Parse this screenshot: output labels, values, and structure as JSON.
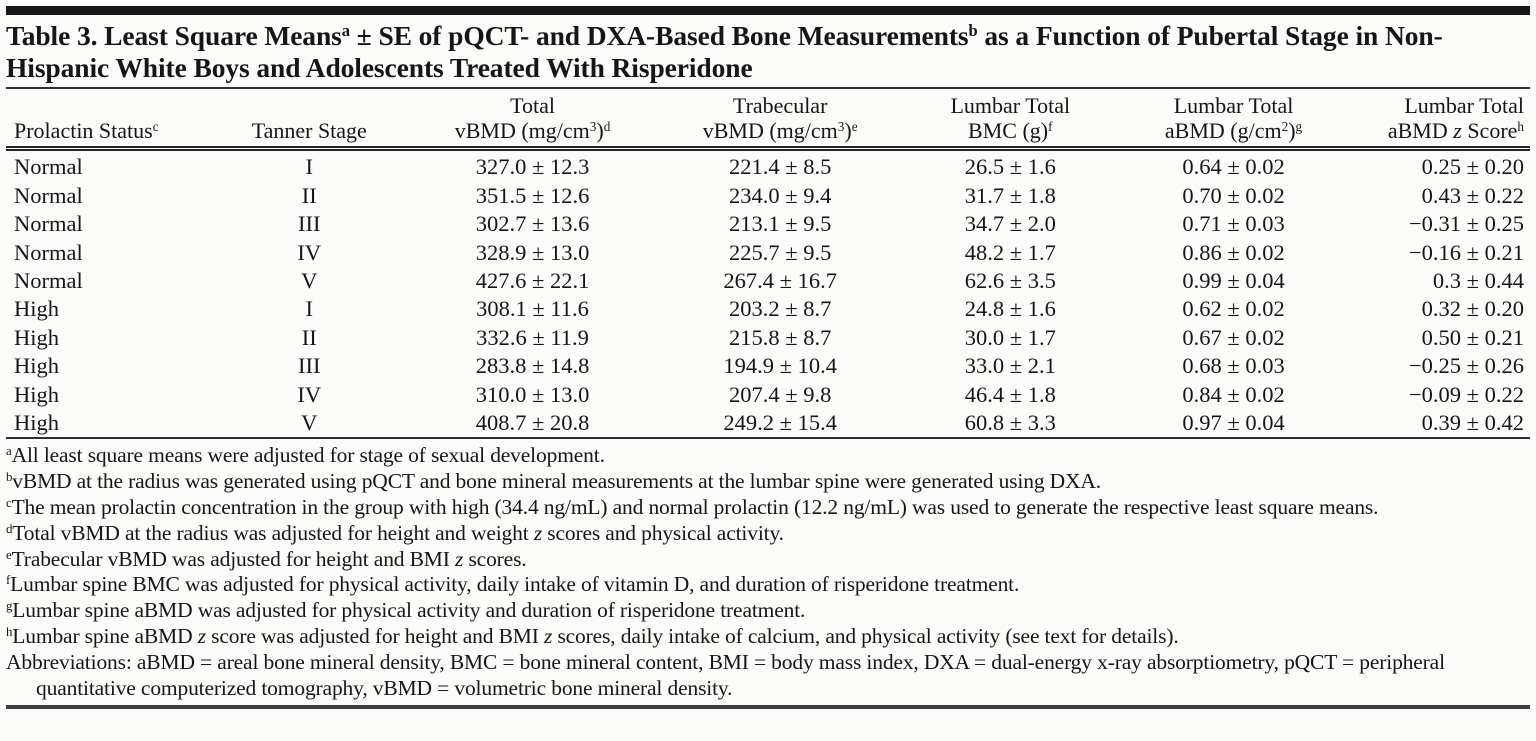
{
  "colors": {
    "text": "#161616",
    "rule": "#2e2e2e",
    "background": "#fbfbf9"
  },
  "title": {
    "parts": [
      [
        "t",
        "Table 3. Least Square Means"
      ],
      [
        "s",
        "a"
      ],
      [
        "t",
        " ± SE of pQCT- and DXA-Based Bone Measurements"
      ],
      [
        "s",
        "b"
      ],
      [
        "t",
        " as a Function of Pubertal Stage in Non-Hispanic White Boys and Adolescents Treated With Risperidone"
      ]
    ]
  },
  "table": {
    "columns": [
      {
        "id": "prolactin",
        "line2": [
          [
            "t",
            "Prolactin Status"
          ],
          [
            "s",
            "c"
          ]
        ]
      },
      {
        "id": "tanner",
        "line2": [
          [
            "t",
            "Tanner Stage"
          ]
        ]
      },
      {
        "id": "total_vbmd",
        "line1": [
          [
            "t",
            "Total"
          ]
        ],
        "line2": [
          [
            "t",
            "vBMD (mg/cm"
          ],
          [
            "s",
            "3"
          ],
          [
            "t",
            ")"
          ],
          [
            "s",
            "d"
          ]
        ]
      },
      {
        "id": "trab_vbmd",
        "line1": [
          [
            "t",
            "Trabecular"
          ]
        ],
        "line2": [
          [
            "t",
            "vBMD (mg/cm"
          ],
          [
            "s",
            "3"
          ],
          [
            "t",
            ")"
          ],
          [
            "s",
            "e"
          ]
        ]
      },
      {
        "id": "bmc",
        "line1": [
          [
            "t",
            "Lumbar Total"
          ]
        ],
        "line2": [
          [
            "t",
            "BMC (g)"
          ],
          [
            "s",
            "f"
          ]
        ]
      },
      {
        "id": "abmd",
        "line1": [
          [
            "t",
            "Lumbar Total"
          ]
        ],
        "line2": [
          [
            "t",
            "aBMD (g/cm"
          ],
          [
            "s",
            "2"
          ],
          [
            "t",
            ")"
          ],
          [
            "s",
            "g"
          ]
        ]
      },
      {
        "id": "abmd_z",
        "line1": [
          [
            "t",
            "Lumbar Total"
          ]
        ],
        "line2": [
          [
            "t",
            "aBMD "
          ],
          [
            "i",
            "z"
          ],
          [
            "t",
            " Score"
          ],
          [
            "s",
            "h"
          ]
        ]
      }
    ],
    "row_keys": [
      "prolactin",
      "tanner",
      "total_vbmd",
      "trab_vbmd",
      "bmc",
      "abmd",
      "abmd_z"
    ],
    "rows": [
      {
        "prolactin": "Normal",
        "tanner": "I",
        "total_vbmd": "327.0 ± 12.3",
        "trab_vbmd": "221.4 ± 8.5",
        "bmc": "26.5 ± 1.6",
        "abmd": "0.64 ± 0.02",
        "abmd_z": "0.25 ± 0.20"
      },
      {
        "prolactin": "Normal",
        "tanner": "II",
        "total_vbmd": "351.5 ± 12.6",
        "trab_vbmd": "234.0 ± 9.4",
        "bmc": "31.7 ± 1.8",
        "abmd": "0.70 ± 0.02",
        "abmd_z": "0.43 ± 0.22"
      },
      {
        "prolactin": "Normal",
        "tanner": "III",
        "total_vbmd": "302.7 ± 13.6",
        "trab_vbmd": "213.1 ± 9.5",
        "bmc": "34.7 ± 2.0",
        "abmd": "0.71 ± 0.03",
        "abmd_z": "−0.31 ± 0.25"
      },
      {
        "prolactin": "Normal",
        "tanner": "IV",
        "total_vbmd": "328.9 ± 13.0",
        "trab_vbmd": "225.7 ± 9.5",
        "bmc": "48.2 ± 1.7",
        "abmd": "0.86 ± 0.02",
        "abmd_z": "−0.16 ± 0.21"
      },
      {
        "prolactin": "Normal",
        "tanner": "V",
        "total_vbmd": "427.6 ± 22.1",
        "trab_vbmd": "267.4 ± 16.7",
        "bmc": "62.6 ± 3.5",
        "abmd": "0.99 ± 0.04",
        "abmd_z": "0.3 ± 0.44"
      },
      {
        "prolactin": "High",
        "tanner": "I",
        "total_vbmd": "308.1 ± 11.6",
        "trab_vbmd": "203.2 ± 8.7",
        "bmc": "24.8 ± 1.6",
        "abmd": "0.62 ± 0.02",
        "abmd_z": "0.32 ± 0.20"
      },
      {
        "prolactin": "High",
        "tanner": "II",
        "total_vbmd": "332.6 ± 11.9",
        "trab_vbmd": "215.8 ± 8.7",
        "bmc": "30.0 ± 1.7",
        "abmd": "0.67 ± 0.02",
        "abmd_z": "0.50 ± 0.21"
      },
      {
        "prolactin": "High",
        "tanner": "III",
        "total_vbmd": "283.8 ± 14.8",
        "trab_vbmd": "194.9 ± 10.4",
        "bmc": "33.0 ± 2.1",
        "abmd": "0.68 ± 0.03",
        "abmd_z": "−0.25 ± 0.26"
      },
      {
        "prolactin": "High",
        "tanner": "IV",
        "total_vbmd": "310.0 ± 13.0",
        "trab_vbmd": "207.4 ± 9.8",
        "bmc": "46.4 ± 1.8",
        "abmd": "0.84 ± 0.02",
        "abmd_z": "−0.09 ± 0.22"
      },
      {
        "prolactin": "High",
        "tanner": "V",
        "total_vbmd": "408.7 ± 20.8",
        "trab_vbmd": "249.2 ± 15.4",
        "bmc": "60.8 ± 3.3",
        "abmd": "0.97 ± 0.04",
        "abmd_z": "0.39 ± 0.42"
      }
    ]
  },
  "footnotes": [
    {
      "parts": [
        [
          "s",
          "a"
        ],
        [
          "t",
          "All least square means were adjusted for stage of sexual development."
        ]
      ]
    },
    {
      "parts": [
        [
          "s",
          "b"
        ],
        [
          "t",
          "vBMD at the radius was generated using pQCT and bone mineral measurements at the lumbar spine were generated using DXA."
        ]
      ]
    },
    {
      "parts": [
        [
          "s",
          "c"
        ],
        [
          "t",
          "The mean prolactin concentration in the group with high (34.4 ng/mL) and normal prolactin (12.2 ng/mL) was used to generate the respective least square means."
        ]
      ]
    },
    {
      "parts": [
        [
          "s",
          "d"
        ],
        [
          "t",
          "Total vBMD at the radius was adjusted for height and weight "
        ],
        [
          "i",
          "z"
        ],
        [
          "t",
          " scores and physical activity."
        ]
      ]
    },
    {
      "parts": [
        [
          "s",
          "e"
        ],
        [
          "t",
          "Trabecular vBMD was adjusted for height and BMI "
        ],
        [
          "i",
          "z"
        ],
        [
          "t",
          " scores."
        ]
      ]
    },
    {
      "parts": [
        [
          "s",
          "f"
        ],
        [
          "t",
          "Lumbar spine BMC was adjusted for physical activity, daily intake of vitamin D, and duration of risperidone treatment."
        ]
      ]
    },
    {
      "parts": [
        [
          "s",
          "g"
        ],
        [
          "t",
          "Lumbar spine aBMD was adjusted for physical activity and duration of risperidone treatment."
        ]
      ]
    },
    {
      "parts": [
        [
          "s",
          "h"
        ],
        [
          "t",
          "Lumbar spine aBMD "
        ],
        [
          "i",
          "z"
        ],
        [
          "t",
          " score was adjusted for height and BMI "
        ],
        [
          "i",
          "z"
        ],
        [
          "t",
          " scores, daily intake of calcium, and physical activity (see text for details)."
        ]
      ]
    },
    {
      "parts": [
        [
          "t",
          "Abbreviations: aBMD = areal bone mineral density, BMC = bone mineral content, BMI = body mass index, DXA = dual-energy x-ray absorptiometry, pQCT = peripheral quantitative computerized tomography, vBMD = volumetric bone mineral density."
        ]
      ]
    }
  ]
}
